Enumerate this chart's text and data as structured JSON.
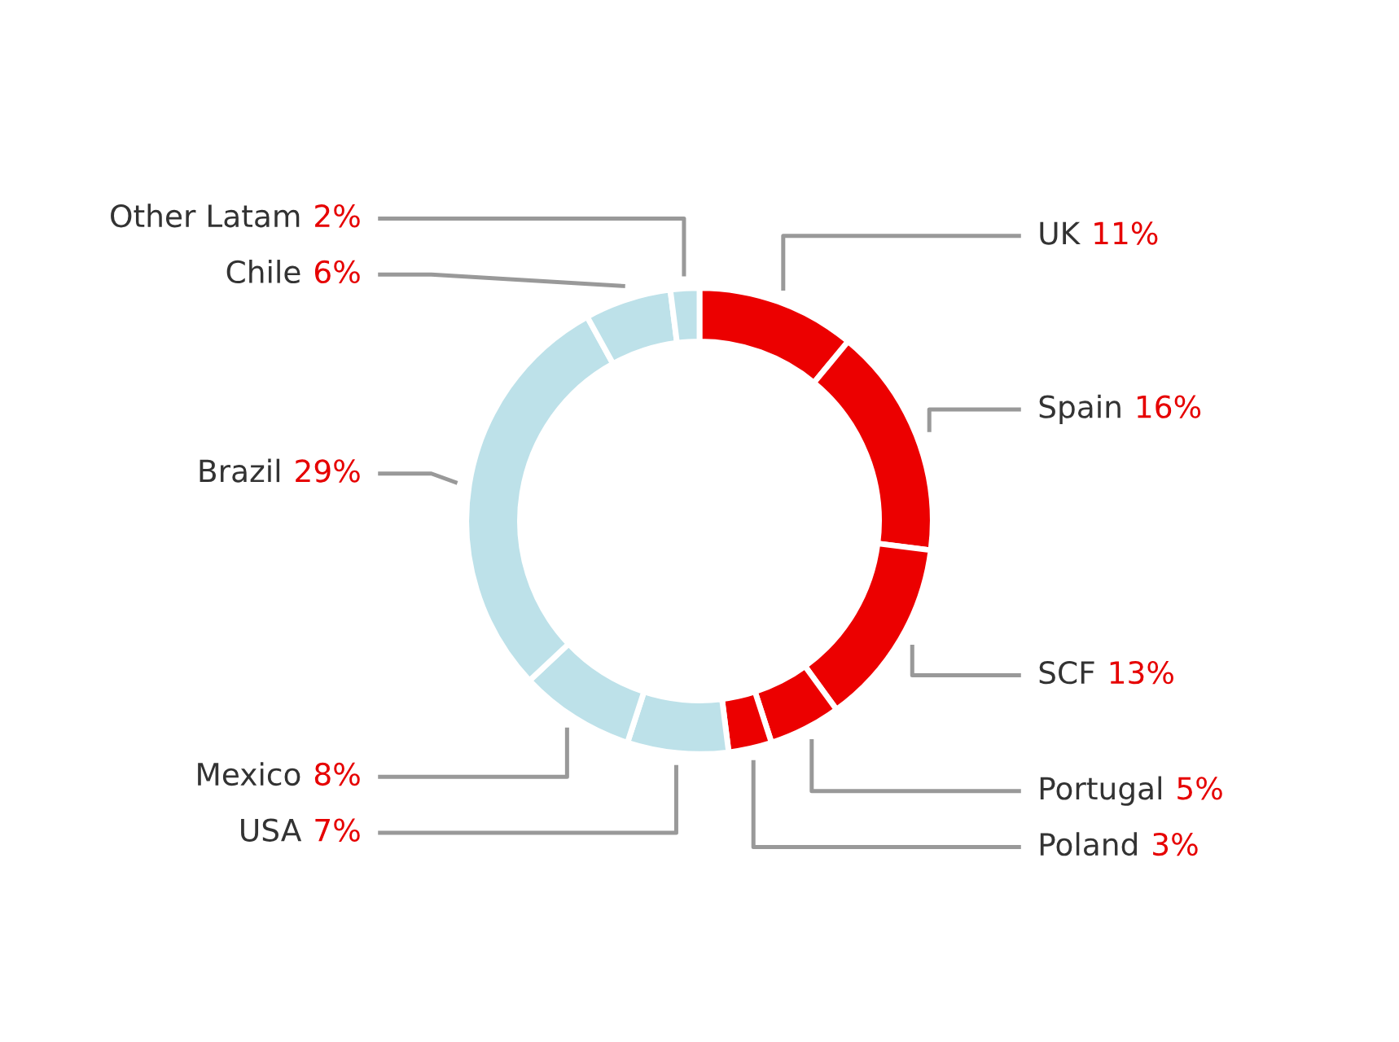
{
  "chart_data": {
    "type": "donut",
    "categories": [
      "UK",
      "Spain",
      "SCF",
      "Portugal",
      "Poland",
      "USA",
      "Mexico",
      "Brazil",
      "Chile",
      "Other Latam"
    ],
    "values": [
      11,
      16,
      13,
      5,
      3,
      7,
      8,
      29,
      6,
      2
    ],
    "value_labels": [
      "11%",
      "16%",
      "13%",
      "5%",
      "3%",
      "7%",
      "8%",
      "29%",
      "6%",
      "2%"
    ],
    "colors": [
      "#ec0000",
      "#ec0000",
      "#ec0000",
      "#ec0000",
      "#ec0000",
      "#bde1e9",
      "#bde1e9",
      "#bde1e9",
      "#bde1e9",
      "#bde1e9"
    ]
  }
}
